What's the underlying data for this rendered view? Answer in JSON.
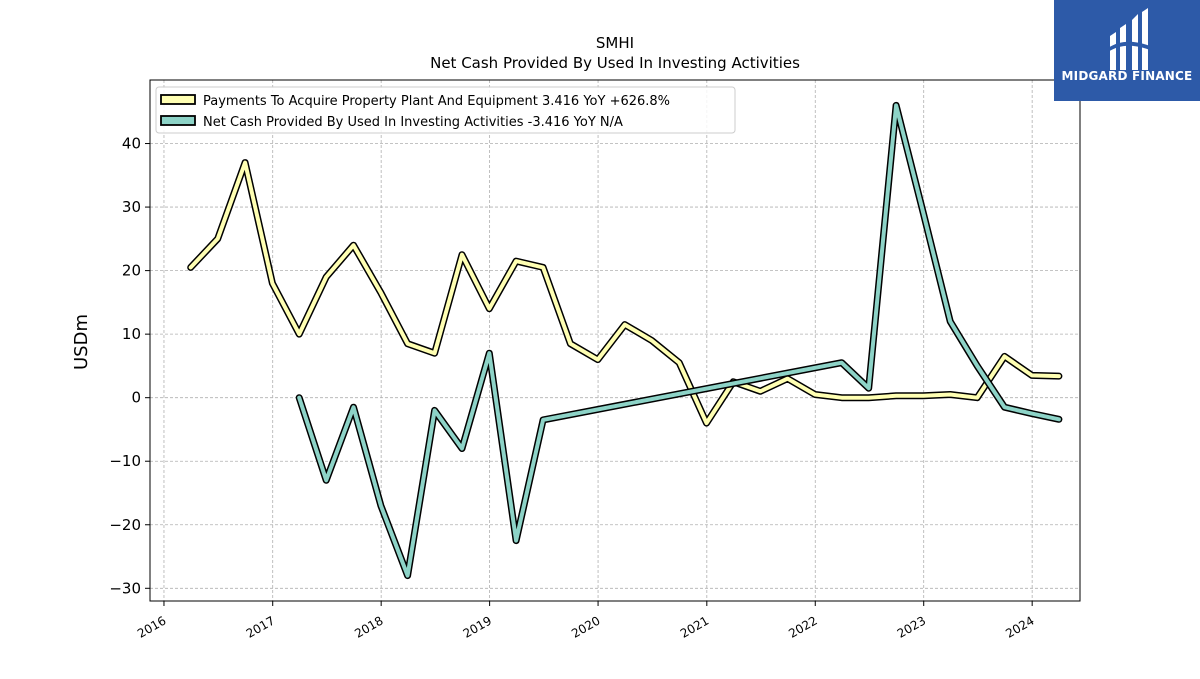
{
  "brand": {
    "name": "MIDGARD FINANCE",
    "bg_color": "#2d5aa8"
  },
  "chart_data": {
    "type": "line",
    "title": "SMHI",
    "subtitle": "Net Cash Provided By Used In Investing Activities",
    "xlabel": "",
    "ylabel": "USDm",
    "xlim": [
      "2015-11-15",
      "2024-06-10"
    ],
    "ylim": [
      -32,
      50
    ],
    "yticks": [
      -30,
      -20,
      -10,
      0,
      10,
      20,
      30,
      40
    ],
    "xticks": [
      "2016",
      "2017",
      "2018",
      "2019",
      "2020",
      "2021",
      "2022",
      "2023",
      "2024"
    ],
    "grid": true,
    "legend_position": "top-left",
    "series": [
      {
        "name": "Payments To Acquire Property Plant And Equipment",
        "legend_label": "Payments To Acquire Property Plant And Equipment  3.416 YoY +626.8%",
        "color": "#ffffb3",
        "points": [
          [
            "2016-03-31",
            20.5
          ],
          [
            "2016-06-30",
            25.0
          ],
          [
            "2016-09-30",
            37.0
          ],
          [
            "2016-12-31",
            18.0
          ],
          [
            "2017-03-31",
            10.0
          ],
          [
            "2017-06-30",
            19.0
          ],
          [
            "2017-09-30",
            24.0
          ],
          [
            "2017-12-31",
            16.5
          ],
          [
            "2018-03-31",
            8.5
          ],
          [
            "2018-06-30",
            7.0
          ],
          [
            "2018-09-30",
            22.5
          ],
          [
            "2018-12-31",
            14.0
          ],
          [
            "2019-03-31",
            21.5
          ],
          [
            "2019-06-30",
            20.5
          ],
          [
            "2019-09-30",
            8.5
          ],
          [
            "2019-12-31",
            6.0
          ],
          [
            "2020-03-31",
            11.5
          ],
          [
            "2020-06-30",
            9.0
          ],
          [
            "2020-09-30",
            5.5
          ],
          [
            "2020-12-31",
            -4.0
          ],
          [
            "2021-03-31",
            2.5
          ],
          [
            "2021-06-30",
            1.0
          ],
          [
            "2021-09-30",
            3.0
          ],
          [
            "2021-12-31",
            0.5
          ],
          [
            "2022-03-31",
            0.0
          ],
          [
            "2022-06-30",
            0.0
          ],
          [
            "2022-09-30",
            0.3
          ],
          [
            "2022-12-31",
            0.3
          ],
          [
            "2023-03-31",
            0.5
          ],
          [
            "2023-06-30",
            0.0
          ],
          [
            "2023-09-30",
            6.5
          ],
          [
            "2023-12-31",
            3.5
          ],
          [
            "2024-03-31",
            3.4
          ]
        ]
      },
      {
        "name": "Net Cash Provided By Used In Investing Activities",
        "legend_label": "Net Cash Provided By Used In Investing Activities  -3.416 YoY N/A",
        "color": "#8dd3c7",
        "points": [
          [
            "2017-03-31",
            0.0
          ],
          [
            "2017-06-30",
            -13.0
          ],
          [
            "2017-09-30",
            -1.5
          ],
          [
            "2017-12-31",
            -17.0
          ],
          [
            "2018-03-31",
            -28.0
          ],
          [
            "2018-06-30",
            -2.0
          ],
          [
            "2018-09-30",
            -8.0
          ],
          [
            "2018-12-31",
            7.0
          ],
          [
            "2019-03-31",
            -22.5
          ],
          [
            "2019-06-30",
            -3.5
          ],
          [
            "2022-03-31",
            5.5
          ],
          [
            "2022-06-30",
            1.5
          ],
          [
            "2022-09-30",
            46.0
          ],
          [
            "2022-12-31",
            29.0
          ],
          [
            "2023-03-31",
            12.0
          ],
          [
            "2023-06-30",
            5.0
          ],
          [
            "2023-09-30",
            -1.5
          ],
          [
            "2023-12-31",
            -2.5
          ],
          [
            "2024-03-31",
            -3.4
          ]
        ]
      }
    ]
  }
}
